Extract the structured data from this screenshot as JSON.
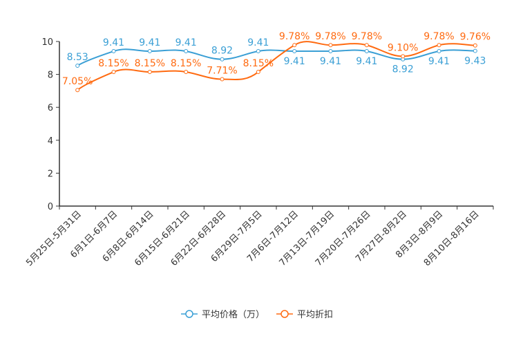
{
  "chart_data": {
    "type": "line",
    "categories": [
      "5月25日-5月31日",
      "6月1日-6月7日",
      "6月8日-6月14日",
      "6月15日-6月21日",
      "6月22日-6月28日",
      "6月29日-7月5日",
      "7月6日-7月12日",
      "7月13日-7月19日",
      "7月20日-7月26日",
      "7月27日-8月2日",
      "8月3日-8月9日",
      "8月10日-8月16日"
    ],
    "series": [
      {
        "name": "平均价格（万）",
        "color": "#3a9fd5",
        "values": [
          8.53,
          9.41,
          9.41,
          9.41,
          8.92,
          9.41,
          9.41,
          9.41,
          9.41,
          8.92,
          9.41,
          9.43
        ],
        "labels": [
          "8.53",
          "9.41",
          "9.41",
          "9.41",
          "8.92",
          "9.41",
          "9.41",
          "9.41",
          "9.41",
          "8.92",
          "9.41",
          "9.43"
        ]
      },
      {
        "name": "平均折扣",
        "color": "#ff6a10",
        "values": [
          7.05,
          8.15,
          8.15,
          8.15,
          7.71,
          8.15,
          9.78,
          9.78,
          9.78,
          9.1,
          9.78,
          9.76
        ],
        "labels": [
          "7.05%",
          "8.15%",
          "8.15%",
          "8.15%",
          "7.71%",
          "8.15%",
          "9.78%",
          "9.78%",
          "9.78%",
          "9.10%",
          "9.78%",
          "9.76%"
        ]
      }
    ],
    "ylim": [
      0,
      10
    ],
    "yticks": [
      "0",
      "2",
      "4",
      "6",
      "8",
      "10"
    ],
    "legend": "bottom-center",
    "grid": false
  }
}
